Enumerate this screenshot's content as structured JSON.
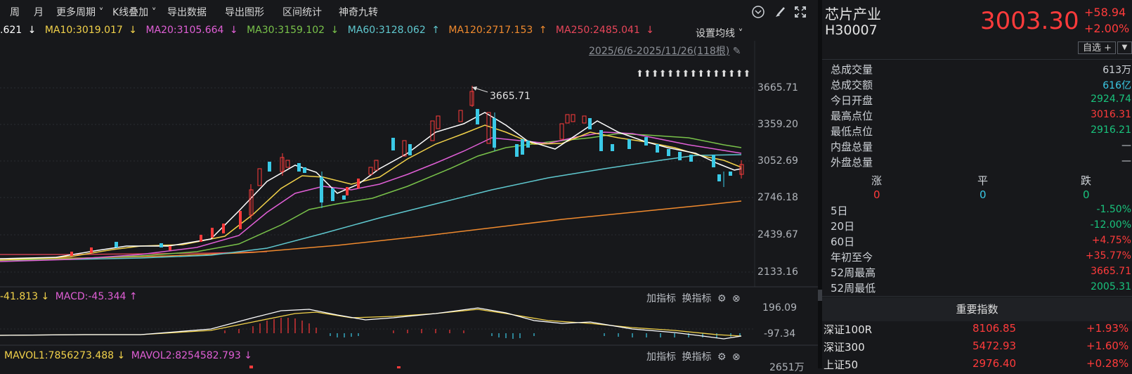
{
  "toolbar": {
    "items": [
      "周",
      "月",
      "更多周期",
      "K线叠加",
      "导出数据",
      "导出图形",
      "区间统计",
      "神奇九转"
    ]
  },
  "ma_row": {
    "ma5": ".621",
    "ma10": "MA10:3019.017",
    "ma20": "MA20:3105.664",
    "ma30": "MA30:3159.102",
    "ma60": "MA60:3128.062",
    "ma120": "MA120:2717.153",
    "ma250": "MA250:2485.041",
    "settings": "设置均线",
    "arrows": {
      "ma5": "↓",
      "ma10": "↓",
      "ma20": "↓",
      "ma30": "↓",
      "ma60": "↑",
      "ma120": "↑",
      "ma250": "↓"
    }
  },
  "range_label": "2025/6/6-2025/11/26(118根)",
  "price_axis": [
    "3665.71",
    "3359.20",
    "3052.69",
    "2746.18",
    "2439.67",
    "2133.16"
  ],
  "high_label": "3665.71",
  "macd_panel": {
    "dif": "-41.813",
    "macd": "MACD:-45.344",
    "dif_arrow": "↓",
    "macd_arrow": "↑",
    "add": "加指标",
    "swap": "换指标",
    "axis": [
      "196.09",
      "-97.34"
    ]
  },
  "vol_panel": {
    "mavol1": "MAVOL1:7856273.488",
    "mavol2": "MAVOL2:8254582.793",
    "arrow1": "↓",
    "arrow2": "↓",
    "add": "加指标",
    "swap": "换指标",
    "axis": "2651万"
  },
  "stock": {
    "name": "芯片产业",
    "code": "H30007",
    "price": "3003.30",
    "change": "+58.94",
    "change_pct": "+2.00%",
    "add_button": "自选 +"
  },
  "stats": [
    {
      "label": "总成交量",
      "value": "613万",
      "color": "#cfd3d8"
    },
    {
      "label": "总成交额",
      "value": "616亿",
      "color": "#3ac9e6"
    },
    {
      "label": "今日开盘",
      "value": "2924.74",
      "color": "#19c37d"
    },
    {
      "label": "最高点位",
      "value": "3016.31",
      "color": "#ff3b3b"
    },
    {
      "label": "最低点位",
      "value": "2916.21",
      "color": "#19c37d"
    },
    {
      "label": "内盘总量",
      "value": "—",
      "color": "#cfd3d8"
    },
    {
      "label": "外盘总量",
      "value": "—",
      "color": "#cfd3d8"
    }
  ],
  "breadth": {
    "up_label": "涨",
    "flat_label": "平",
    "down_label": "跌",
    "up": "0",
    "flat": "0",
    "down": "0"
  },
  "periods": [
    {
      "label": "5日",
      "value": "-1.50%",
      "color": "#19c37d"
    },
    {
      "label": "20日",
      "value": "-12.00%",
      "color": "#19c37d"
    },
    {
      "label": "60日",
      "value": "+4.75%",
      "color": "#ff3b3b"
    },
    {
      "label": "年初至今",
      "value": "+35.77%",
      "color": "#ff3b3b"
    },
    {
      "label": "52周最高",
      "value": "3665.71",
      "color": "#ff3b3b"
    },
    {
      "label": "52周最低",
      "value": "2005.31",
      "color": "#19c37d"
    }
  ],
  "indices_header": "重要指数",
  "indices": [
    {
      "name": "深证100R",
      "price": "8106.85",
      "pct": "+1.93%"
    },
    {
      "name": "深证300",
      "price": "5472.93",
      "pct": "+1.60%"
    },
    {
      "name": "上证50",
      "price": "2976.40",
      "pct": "+0.28%"
    }
  ]
}
